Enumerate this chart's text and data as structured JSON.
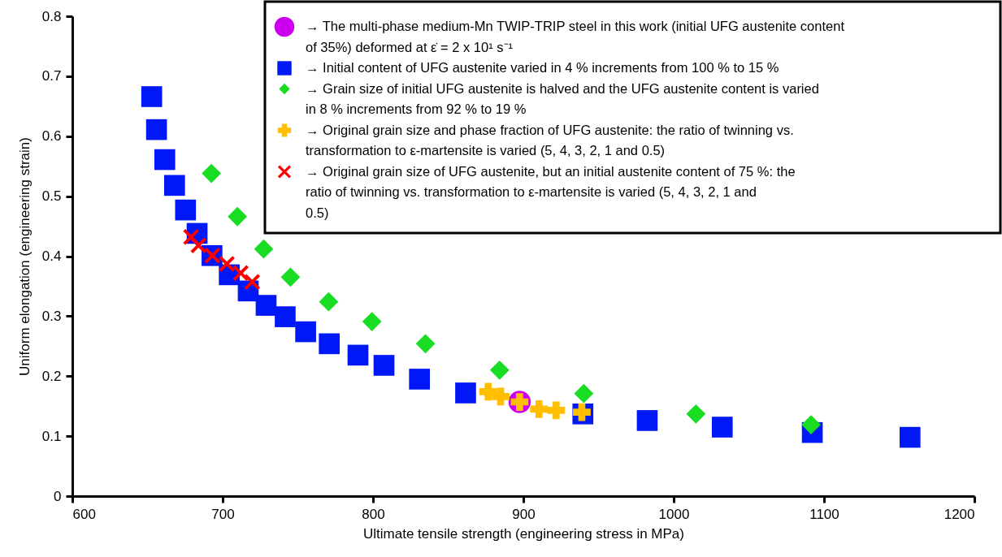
{
  "chart_data": {
    "type": "scatter",
    "xlabel": "Ultimate tensile strength (engineering stress in MPa)",
    "ylabel": "Uniform elongation (engineering strain)",
    "xlim": [
      600,
      1200
    ],
    "ylim": [
      0,
      0.8
    ],
    "xticks": [
      600,
      700,
      800,
      900,
      1000,
      1100,
      1200
    ],
    "yticks": [
      0,
      0.1,
      0.2,
      0.3,
      0.4,
      0.5,
      0.6,
      0.7,
      0.8
    ],
    "grid": false,
    "legend": "top right",
    "series": [
      {
        "name": "→ The multi-phase medium-Mn TWIP-TRIP steel in this work (initial UFG austenite content of 35%) deformed at ε̇ = 2 x 10¹ s⁻¹",
        "color": "#cc00ee",
        "marker": "circle",
        "x": [
          897.5
        ],
        "values": [
          0.157
        ]
      },
      {
        "name": "→ Initial content of UFG austenite varied in 4 % increments from 100 % to 15 %",
        "color": "#0018f5",
        "marker": "square",
        "x": [
          652.8,
          656,
          661.5,
          668,
          675.3,
          683,
          692.9,
          704.4,
          717,
          728.9,
          741.6,
          755.2,
          770.9,
          790,
          807.3,
          830.9,
          861.6,
          939.6,
          982.4,
          1032.3,
          1092.2,
          1157.2
        ],
        "values": [
          0.666,
          0.611,
          0.561,
          0.518,
          0.477,
          0.438,
          0.401,
          0.369,
          0.342,
          0.318,
          0.299,
          0.274,
          0.254,
          0.235,
          0.218,
          0.195,
          0.172,
          0.137,
          0.126,
          0.115,
          0.106,
          0.098
        ]
      },
      {
        "name": "→ Grain size of initial UFG austenite is halved and the UFG austenite content is varied in 8 % increments from 92 % to 19 %",
        "color": "#18dd22",
        "marker": "diamond",
        "x": [
          692.5,
          709.8,
          727.3,
          745.1,
          770.5,
          799.3,
          834.9,
          884.2,
          940.2,
          1014.8,
          1091.4
        ],
        "values": [
          0.538,
          0.466,
          0.412,
          0.365,
          0.324,
          0.291,
          0.254,
          0.21,
          0.171,
          0.137,
          0.119
        ]
      },
      {
        "name": "→ Original grain size and phase fraction of UFG austenite: the ratio of twinning vs. transformation to ε-martensite is varied (5, 4, 3, 2, 1 and 0.5)",
        "color": "#ffbf00",
        "marker": "cross",
        "x": [
          876.6,
          884.9,
          897.5,
          910.4,
          921.8,
          938.9
        ],
        "values": [
          0.174,
          0.166,
          0.157,
          0.145,
          0.143,
          0.14
        ]
      },
      {
        "name": "→ Original grain size of UFG austenite, but an initial austenite content of 75 %: the ratio of twinning vs. transformation to ε-martensite is varied (5, 4, 3, 2, 1 and 0.5)",
        "color": "#ff0000",
        "marker": "x",
        "x": [
          679,
          683.9,
          693.2,
          702.8,
          712,
          719.6
        ],
        "values": [
          0.432,
          0.418,
          0.401,
          0.387,
          0.372,
          0.357
        ]
      }
    ]
  }
}
